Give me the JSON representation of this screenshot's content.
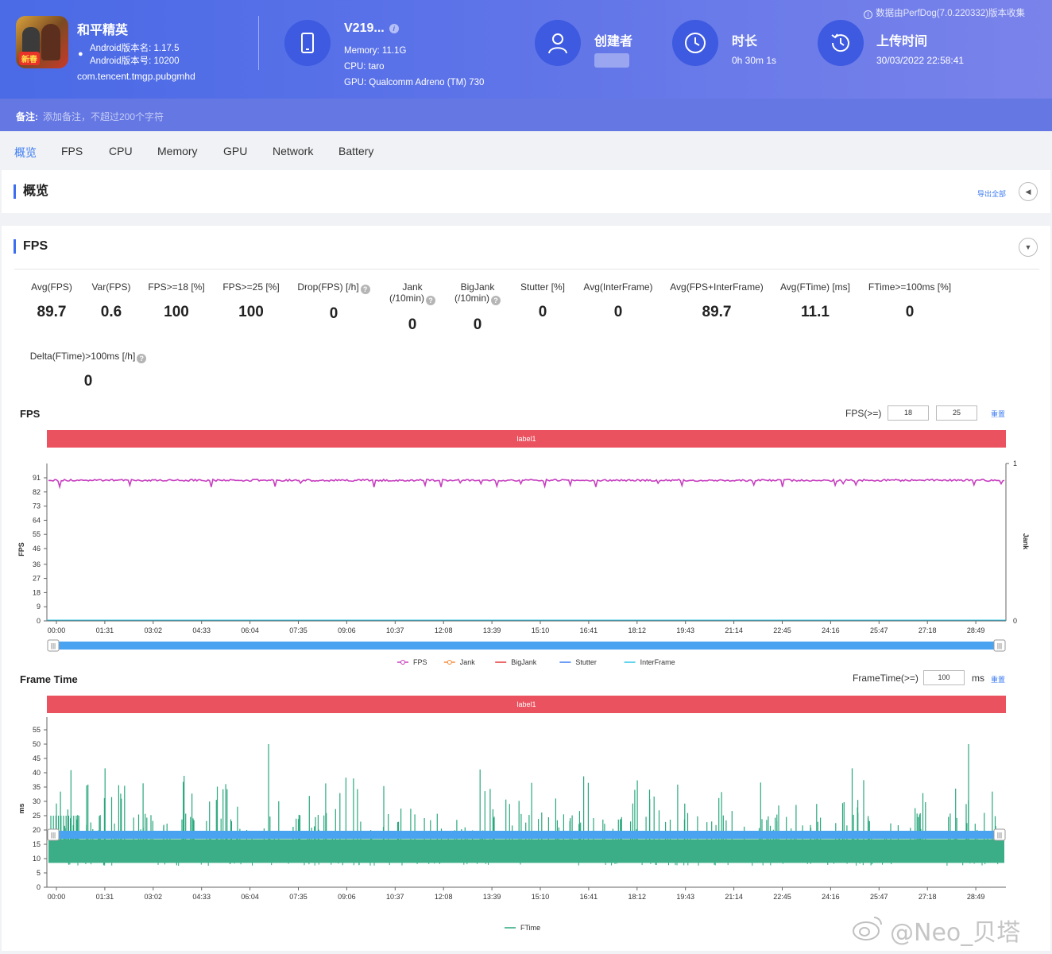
{
  "header": {
    "app_name": "和平精英",
    "app_icon_tag": "新春",
    "android_version_name": "Android版本名: 1.17.5",
    "android_version_code": "Android版本号: 10200",
    "package": "com.tencent.tmgp.pubgmhd",
    "device_name": "V219...",
    "device_memory": "Memory: 11.1G",
    "device_cpu": "CPU: taro",
    "device_gpu": "GPU: Qualcomm Adreno (TM) 730",
    "creator_title": "创建者",
    "duration_title": "时长",
    "duration_value": "0h 30m 1s",
    "upload_title": "上传时间",
    "upload_value": "30/03/2022 22:58:41",
    "source_note": "数据由PerfDog(7.0.220332)版本收集"
  },
  "remark": {
    "label": "备注:",
    "placeholder": "添加备注，不超过200个字符"
  },
  "tabs": [
    "概览",
    "FPS",
    "CPU",
    "Memory",
    "GPU",
    "Network",
    "Battery"
  ],
  "overview": {
    "title": "概览",
    "export_label": "导出全部"
  },
  "fps_section": {
    "title": "FPS",
    "metrics": [
      {
        "label1": "",
        "label2": "Avg(FPS)",
        "help": false,
        "value": "89.7"
      },
      {
        "label1": "",
        "label2": "Var(FPS)",
        "help": false,
        "value": "0.6"
      },
      {
        "label1": "",
        "label2": "FPS>=18 [%]",
        "help": false,
        "value": "100"
      },
      {
        "label1": "",
        "label2": "FPS>=25 [%]",
        "help": false,
        "value": "100"
      },
      {
        "label1": "",
        "label2": "Drop(FPS) [/h]",
        "help": true,
        "value": "0"
      },
      {
        "label1": "Jank",
        "label2": "(/10min)",
        "help": true,
        "value": "0"
      },
      {
        "label1": "BigJank",
        "label2": "(/10min)",
        "help": true,
        "value": "0"
      },
      {
        "label1": "",
        "label2": "Stutter [%]",
        "help": false,
        "value": "0"
      },
      {
        "label1": "",
        "label2": "Avg(InterFrame)",
        "help": false,
        "value": "0"
      },
      {
        "label1": "",
        "label2": "Avg(FPS+InterFrame)",
        "help": false,
        "value": "89.7"
      },
      {
        "label1": "",
        "label2": "Avg(FTime) [ms]",
        "help": false,
        "value": "11.1"
      },
      {
        "label1": "",
        "label2": "FTime>=100ms [%]",
        "help": false,
        "value": "0"
      },
      {
        "label1": "",
        "label2": "Delta(FTime)>100ms [/h]",
        "help": true,
        "value": "0"
      }
    ],
    "fps_chart": {
      "title": "FPS",
      "threshold_label": "FPS(>=)",
      "threshold_1": "18",
      "threshold_2": "25",
      "reset_label": "重置",
      "label_bar": "label1"
    },
    "ft_chart": {
      "title": "Frame Time",
      "threshold_label": "FrameTime(>=)",
      "threshold_value": "100",
      "unit": "ms",
      "reset_label": "重置",
      "label_bar": "label1"
    }
  },
  "chart_data": [
    {
      "type": "line",
      "title": "FPS",
      "xlabel": "",
      "ylabel": "FPS",
      "y2label": "Jank",
      "x_ticks": [
        "00:00",
        "01:31",
        "03:02",
        "04:33",
        "06:04",
        "07:35",
        "09:06",
        "10:37",
        "12:08",
        "13:39",
        "15:10",
        "16:41",
        "18:12",
        "19:43",
        "21:14",
        "22:45",
        "24:16",
        "25:47",
        "27:18",
        "28:49"
      ],
      "y_ticks": [
        0,
        9,
        18,
        27,
        36,
        46,
        55,
        64,
        73,
        82,
        91
      ],
      "y2_ticks": [
        0,
        1
      ],
      "ylim": [
        0,
        91
      ],
      "y2lim": [
        0,
        1
      ],
      "series": [
        {
          "name": "FPS",
          "color": "#c73fc0",
          "approx_value": 90,
          "min_dips": 85
        },
        {
          "name": "Jank",
          "color": "#f58a3a",
          "value": 0
        },
        {
          "name": "BigJank",
          "color": "#e53935",
          "value": 0
        },
        {
          "name": "Stutter",
          "color": "#3d7cf3",
          "value": 0
        },
        {
          "name": "InterFrame",
          "color": "#2ec7e6",
          "value": 0
        }
      ]
    },
    {
      "type": "line",
      "title": "Frame Time",
      "xlabel": "",
      "ylabel": "ms",
      "x_ticks": [
        "00:00",
        "01:31",
        "03:02",
        "04:33",
        "06:04",
        "07:35",
        "09:06",
        "10:37",
        "12:08",
        "13:39",
        "15:10",
        "16:41",
        "18:12",
        "19:43",
        "21:14",
        "22:45",
        "24:16",
        "25:47",
        "27:18",
        "28:49"
      ],
      "y_ticks": [
        0,
        5,
        10,
        15,
        20,
        25,
        30,
        35,
        40,
        45,
        50,
        55
      ],
      "ylim": [
        0,
        55
      ],
      "series": [
        {
          "name": "FTime",
          "color": "#2aa77d",
          "band_low": 8.5,
          "band_high": 16.8,
          "peak": 50
        }
      ]
    }
  ],
  "watermark": "@Neo_贝塔",
  "colors": {
    "accent": "#3d7cf3",
    "header_start": "#4a6ae6",
    "header_end": "#7a83ea",
    "label_bar": "#eb525f",
    "fps_line": "#c73fc0",
    "ftime_line": "#2aa77d"
  }
}
